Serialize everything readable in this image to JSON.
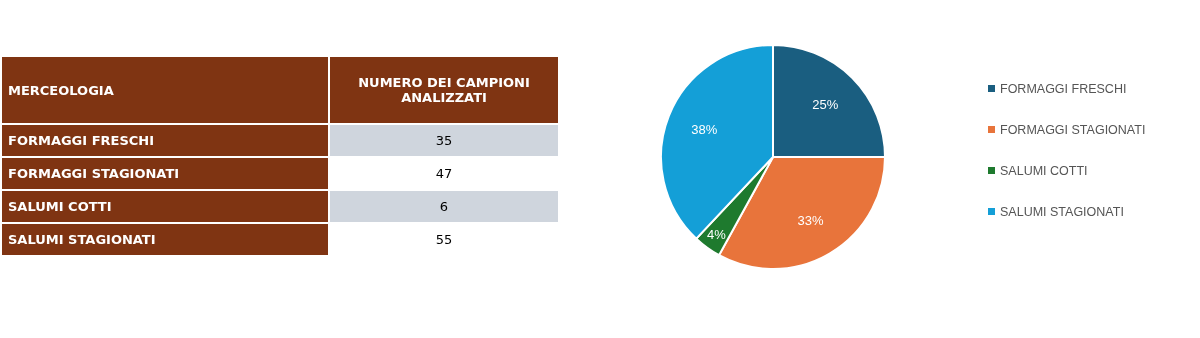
{
  "chart_data": [
    {
      "type": "other",
      "annotations": [
        "MERCEOLOGIA",
        "NUMERO DEI CAMPIONI ANALIZZATI"
      ],
      "categories": [
        "FORMAGGI FRESCHI",
        "FORMAGGI STAGIONATI",
        "SALUMI COTTI",
        "SALUMI STAGIONATI"
      ],
      "values": [
        35,
        47,
        6,
        55
      ],
      "data_labels": true
    },
    {
      "type": "pie",
      "categories": [
        "FORMAGGI FRESCHI",
        "FORMAGGI STAGIONATI",
        "SALUMI COTTI",
        "SALUMI STAGIONATI"
      ],
      "values": [
        25,
        33,
        4,
        38
      ],
      "colors": [
        "#1a5e80",
        "#e8743b",
        "#1e7a2e",
        "#149fd7"
      ],
      "value_labels": [
        "25%",
        "33%",
        "4%",
        "38%"
      ],
      "legend": "right"
    }
  ]
}
